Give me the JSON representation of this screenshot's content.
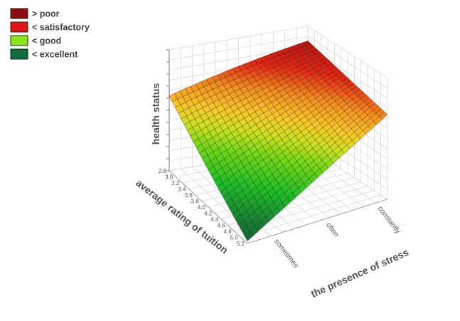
{
  "chart_data": {
    "type": "surface3d",
    "legend": [
      {
        "label": "> poor",
        "color": "#8b0d0d"
      },
      {
        "label": "< satisfactory",
        "color": "#e01414"
      },
      {
        "label": "< good",
        "color": "#8ae61a"
      },
      {
        "label": "< excellent",
        "color": "#0f6e3c"
      }
    ],
    "zlabel": "health status",
    "ylabel": "average rating of tuition",
    "xlabel": "the presence of stress",
    "x_categories": [
      "sometimes",
      "often",
      "constantly"
    ],
    "y_ticks": [
      "2.8",
      "3.0",
      "3.2",
      "3.4",
      "3.6",
      "3.8",
      "4.0",
      "4.2",
      "4.4",
      "4.6",
      "4.8",
      "5.0",
      "5.2"
    ],
    "y_range": [
      2.8,
      5.2
    ],
    "corner_values": {
      "sometimes_at_2.8": 0.62,
      "sometimes_at_5.2": 0.02,
      "constantly_at_2.8": 0.88,
      "constantly_at_5.2": 0.7
    },
    "color_bands": [
      "excellent",
      "good",
      "satisfactory",
      "poor"
    ]
  }
}
